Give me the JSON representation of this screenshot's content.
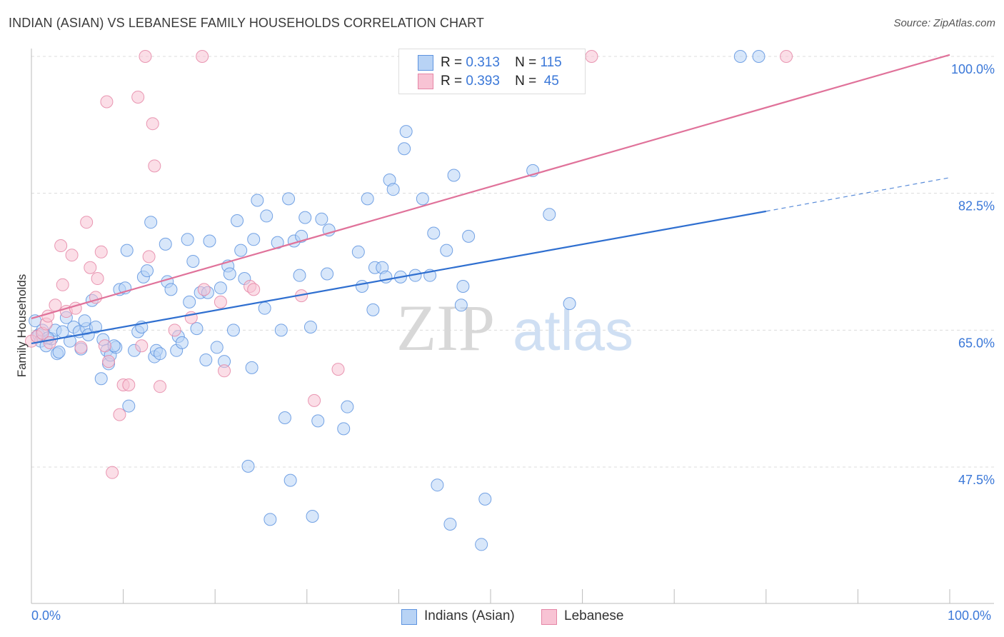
{
  "title": "INDIAN (ASIAN) VS LEBANESE FAMILY HOUSEHOLDS CORRELATION CHART",
  "source": "Source: ZipAtlas.com",
  "watermark": {
    "zip": "ZIP",
    "atlas": "atlas"
  },
  "legend": {
    "r_label": "R =",
    "n_label": "N =",
    "series": [
      {
        "name": "Indians (Asian)",
        "r": "0.313",
        "n": "115",
        "fill": "#b8d3f5",
        "stroke": "#5d93df"
      },
      {
        "name": "Lebanese",
        "r": "0.393",
        "n": "45",
        "fill": "#f8c3d4",
        "stroke": "#e586a6"
      }
    ]
  },
  "chart_data": {
    "type": "scatter",
    "title": "INDIAN (ASIAN) VS LEBANESE FAMILY HOUSEHOLDS CORRELATION CHART",
    "xlabel": "",
    "ylabel": "Family Households",
    "x_tick_labels": [
      "0.0%",
      "100.0%"
    ],
    "y_tick_labels": [
      "100.0%",
      "82.5%",
      "65.0%",
      "47.5%"
    ],
    "y_ticks": [
      100.0,
      82.5,
      65.0,
      47.5
    ],
    "xlim": [
      0,
      100
    ],
    "ylim": [
      30.5,
      101.5
    ],
    "grid": true,
    "series": [
      {
        "name": "Indians (Asian)",
        "color": "#5d93df",
        "line_color": "#2f6fd0",
        "trend": {
          "x0": 0,
          "y0": 63.3,
          "x1": 80,
          "y1": 80.2,
          "dash_to_x": 100,
          "dash_to_y": 84.5
        },
        "points": [
          [
            0.4,
            66.2
          ],
          [
            0.6,
            64.2
          ],
          [
            0.8,
            64.4
          ],
          [
            1.0,
            63.6
          ],
          [
            1.2,
            65.0
          ],
          [
            1.6,
            63.0
          ],
          [
            2.2,
            63.9
          ],
          [
            2.6,
            65.0
          ],
          [
            2.8,
            62.0
          ],
          [
            3.0,
            62.2
          ],
          [
            3.4,
            64.8
          ],
          [
            3.8,
            66.6
          ],
          [
            4.2,
            63.6
          ],
          [
            4.6,
            65.4
          ],
          [
            5.2,
            64.8
          ],
          [
            5.4,
            62.6
          ],
          [
            6.0,
            65.2
          ],
          [
            6.2,
            64.4
          ],
          [
            6.6,
            68.8
          ],
          [
            7.0,
            65.4
          ],
          [
            7.6,
            58.8
          ],
          [
            7.8,
            63.8
          ],
          [
            8.2,
            62.4
          ],
          [
            8.4,
            60.7
          ],
          [
            8.6,
            61.8
          ],
          [
            9.2,
            62.8
          ],
          [
            9.6,
            70.2
          ],
          [
            10.2,
            70.4
          ],
          [
            10.4,
            75.2
          ],
          [
            10.6,
            55.3
          ],
          [
            11.2,
            62.4
          ],
          [
            11.6,
            64.8
          ],
          [
            12.0,
            65.4
          ],
          [
            12.2,
            71.8
          ],
          [
            12.6,
            72.6
          ],
          [
            13.0,
            78.8
          ],
          [
            13.4,
            61.6
          ],
          [
            13.6,
            62.4
          ],
          [
            14.0,
            62.0
          ],
          [
            14.6,
            76.0
          ],
          [
            14.8,
            71.2
          ],
          [
            15.2,
            70.2
          ],
          [
            15.8,
            62.4
          ],
          [
            16.0,
            64.2
          ],
          [
            16.4,
            63.4
          ],
          [
            17.0,
            76.6
          ],
          [
            17.2,
            68.6
          ],
          [
            17.6,
            73.8
          ],
          [
            18.0,
            65.2
          ],
          [
            18.4,
            69.8
          ],
          [
            19.0,
            61.2
          ],
          [
            19.2,
            69.8
          ],
          [
            19.4,
            76.4
          ],
          [
            20.2,
            62.8
          ],
          [
            20.6,
            70.4
          ],
          [
            21.0,
            61.0
          ],
          [
            21.4,
            73.2
          ],
          [
            21.6,
            72.2
          ],
          [
            22.0,
            65.0
          ],
          [
            22.4,
            79.0
          ],
          [
            22.8,
            75.2
          ],
          [
            23.2,
            71.6
          ],
          [
            23.6,
            47.6
          ],
          [
            24.0,
            60.2
          ],
          [
            24.2,
            76.6
          ],
          [
            24.6,
            81.6
          ],
          [
            25.4,
            67.8
          ],
          [
            25.6,
            79.6
          ],
          [
            26.0,
            40.8
          ],
          [
            26.8,
            76.2
          ],
          [
            27.2,
            65.0
          ],
          [
            27.6,
            53.8
          ],
          [
            28.0,
            81.8
          ],
          [
            28.2,
            45.8
          ],
          [
            28.6,
            76.4
          ],
          [
            29.2,
            72.0
          ],
          [
            29.4,
            77.0
          ],
          [
            29.8,
            79.4
          ],
          [
            30.4,
            65.4
          ],
          [
            30.6,
            41.2
          ],
          [
            31.2,
            53.4
          ],
          [
            31.6,
            79.2
          ],
          [
            32.2,
            72.2
          ],
          [
            32.4,
            77.8
          ],
          [
            34.0,
            52.4
          ],
          [
            34.4,
            55.2
          ],
          [
            35.6,
            75.0
          ],
          [
            36.0,
            70.6
          ],
          [
            36.6,
            81.8
          ],
          [
            37.2,
            67.6
          ],
          [
            37.4,
            73.0
          ],
          [
            38.2,
            73.0
          ],
          [
            38.6,
            71.8
          ],
          [
            39.0,
            84.2
          ],
          [
            39.4,
            83.0
          ],
          [
            40.2,
            71.8
          ],
          [
            40.6,
            88.2
          ],
          [
            40.8,
            90.4
          ],
          [
            41.8,
            72.0
          ],
          [
            42.6,
            81.8
          ],
          [
            43.4,
            72.0
          ],
          [
            43.8,
            77.4
          ],
          [
            44.2,
            45.2
          ],
          [
            45.2,
            75.2
          ],
          [
            45.6,
            40.2
          ],
          [
            46.0,
            84.8
          ],
          [
            46.8,
            68.2
          ],
          [
            47.0,
            70.6
          ],
          [
            47.6,
            77.0
          ],
          [
            49.0,
            37.6
          ],
          [
            49.4,
            43.4
          ],
          [
            54.6,
            85.4
          ],
          [
            56.4,
            79.8
          ],
          [
            58.6,
            68.4
          ],
          [
            77.2,
            100.0
          ],
          [
            79.2,
            100.0
          ],
          [
            1.8,
            64.0
          ],
          [
            5.8,
            66.2
          ],
          [
            9.0,
            63.0
          ]
        ]
      },
      {
        "name": "Lebanese",
        "color": "#e586a6",
        "line_color": "#e0729a",
        "trend": {
          "x0": 0,
          "y0": 66.5,
          "x1": 100,
          "y1": 100.2
        },
        "points": [
          [
            0.0,
            63.6
          ],
          [
            0.6,
            64.2
          ],
          [
            1.2,
            64.6
          ],
          [
            1.6,
            65.8
          ],
          [
            1.8,
            66.8
          ],
          [
            2.0,
            63.4
          ],
          [
            2.6,
            68.2
          ],
          [
            3.2,
            75.8
          ],
          [
            3.4,
            70.8
          ],
          [
            3.8,
            67.4
          ],
          [
            4.4,
            74.6
          ],
          [
            4.8,
            67.8
          ],
          [
            5.4,
            62.8
          ],
          [
            6.0,
            78.8
          ],
          [
            6.4,
            73.0
          ],
          [
            7.0,
            69.2
          ],
          [
            7.2,
            71.6
          ],
          [
            7.6,
            75.0
          ],
          [
            8.0,
            63.0
          ],
          [
            8.2,
            94.2
          ],
          [
            8.4,
            61.0
          ],
          [
            8.8,
            46.8
          ],
          [
            9.6,
            54.2
          ],
          [
            10.0,
            58.0
          ],
          [
            10.6,
            58.0
          ],
          [
            11.6,
            94.8
          ],
          [
            12.0,
            63.0
          ],
          [
            12.4,
            100.0
          ],
          [
            12.8,
            74.4
          ],
          [
            13.2,
            91.4
          ],
          [
            13.4,
            86.0
          ],
          [
            14.0,
            57.8
          ],
          [
            15.6,
            65.0
          ],
          [
            17.4,
            66.6
          ],
          [
            18.6,
            100.0
          ],
          [
            18.8,
            70.2
          ],
          [
            20.6,
            68.6
          ],
          [
            21.0,
            59.8
          ],
          [
            23.8,
            70.6
          ],
          [
            24.2,
            70.2
          ],
          [
            29.4,
            69.4
          ],
          [
            30.8,
            56.0
          ],
          [
            33.4,
            60.0
          ],
          [
            61.0,
            100.0
          ],
          [
            82.2,
            100.0
          ]
        ]
      }
    ]
  }
}
